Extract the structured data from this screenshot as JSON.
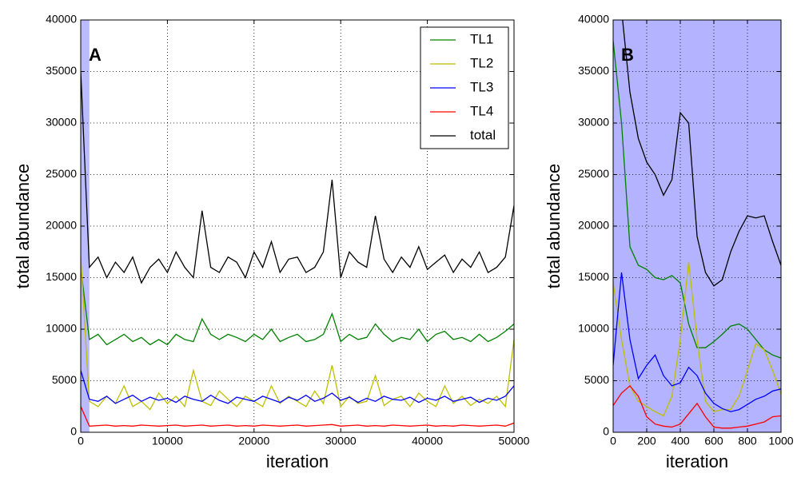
{
  "chart_data": [
    {
      "type": "line",
      "annotation": "A",
      "xlabel": "iteration",
      "ylabel": "total abundance",
      "x": [
        0,
        1000,
        2000,
        3000,
        4000,
        5000,
        6000,
        7000,
        8000,
        9000,
        10000,
        11000,
        12000,
        13000,
        14000,
        15000,
        16000,
        17000,
        18000,
        19000,
        20000,
        21000,
        22000,
        23000,
        24000,
        25000,
        26000,
        27000,
        28000,
        29000,
        30000,
        31000,
        32000,
        33000,
        34000,
        35000,
        36000,
        37000,
        38000,
        39000,
        40000,
        41000,
        42000,
        43000,
        44000,
        45000,
        46000,
        47000,
        48000,
        49000,
        50000
      ],
      "series": [
        {
          "name": "TL1",
          "color": "#008000",
          "values": [
            16000,
            9000,
            9500,
            8500,
            9000,
            9500,
            8800,
            9200,
            8500,
            9000,
            8500,
            9500,
            9000,
            8800,
            11000,
            9500,
            9000,
            9500,
            9200,
            8800,
            9500,
            9000,
            10000,
            8800,
            9200,
            9500,
            8800,
            9000,
            9500,
            11500,
            8800,
            9500,
            9000,
            9200,
            10500,
            9500,
            8800,
            9200,
            9000,
            10000,
            8800,
            9500,
            9800,
            9000,
            9200,
            8800,
            9500,
            8800,
            9200,
            9800,
            10500
          ]
        },
        {
          "name": "TL2",
          "color": "#bfbf00",
          "values": [
            17000,
            3000,
            2500,
            3500,
            2800,
            4500,
            2500,
            3000,
            2200,
            3800,
            2800,
            3500,
            2500,
            6000,
            3000,
            2600,
            4000,
            3200,
            2500,
            3500,
            3000,
            2500,
            4500,
            2800,
            3500,
            3000,
            2500,
            4000,
            2800,
            6500,
            2500,
            3500,
            2800,
            3000,
            5500,
            2600,
            3200,
            3500,
            2500,
            3800,
            3000,
            2500,
            4500,
            2800,
            3500,
            2600,
            3200,
            2800,
            3500,
            2500,
            9000
          ]
        },
        {
          "name": "TL3",
          "color": "#0000ff",
          "values": [
            6000,
            3200,
            3000,
            3500,
            2800,
            3200,
            3600,
            3000,
            3400,
            3100,
            3300,
            2900,
            3500,
            3200,
            3000,
            3600,
            3100,
            2800,
            3400,
            3200,
            3000,
            3500,
            3200,
            2900,
            3400,
            3100,
            3600,
            3000,
            3300,
            3800,
            3100,
            3400,
            2900,
            3300,
            3000,
            3500,
            3200,
            3100,
            3400,
            2900,
            3300,
            3100,
            3500,
            3000,
            3200,
            3400,
            2900,
            3300,
            3100,
            3500,
            4500
          ]
        },
        {
          "name": "TL4",
          "color": "#ff0000",
          "values": [
            2500,
            600,
            650,
            700,
            600,
            650,
            600,
            700,
            650,
            600,
            650,
            700,
            600,
            650,
            700,
            600,
            650,
            700,
            600,
            650,
            600,
            700,
            650,
            600,
            650,
            700,
            600,
            650,
            700,
            750,
            600,
            650,
            700,
            600,
            650,
            600,
            700,
            650,
            600,
            650,
            700,
            600,
            650,
            600,
            700,
            650,
            600,
            650,
            700,
            600,
            900
          ]
        },
        {
          "name": "total",
          "color": "#000000",
          "values": [
            35000,
            16000,
            17000,
            15000,
            16500,
            15500,
            17000,
            14500,
            16000,
            16800,
            15500,
            17500,
            16000,
            15000,
            21500,
            16000,
            15500,
            17000,
            16500,
            15000,
            17500,
            16000,
            18500,
            15500,
            16800,
            17000,
            15500,
            16000,
            17500,
            24500,
            15000,
            17500,
            16500,
            16000,
            21000,
            16800,
            15500,
            17000,
            16000,
            18000,
            15800,
            16500,
            17200,
            15500,
            16800,
            16000,
            17500,
            15500,
            16000,
            17000,
            22000
          ]
        }
      ],
      "xlim": [
        0,
        50000
      ],
      "xticks": [
        0,
        10000,
        20000,
        30000,
        40000,
        50000
      ],
      "ylim": [
        0,
        40000
      ],
      "yticks": [
        0,
        5000,
        10000,
        15000,
        20000,
        25000,
        30000,
        35000,
        40000
      ],
      "grid": true,
      "legend": "upper right",
      "highlight_xlim": [
        0,
        1000
      ],
      "highlight_color": "#b3b3ff"
    },
    {
      "type": "line",
      "annotation": "B",
      "xlabel": "iteration",
      "ylabel": "total abundance",
      "x": [
        0,
        50,
        100,
        150,
        200,
        250,
        300,
        350,
        400,
        450,
        500,
        550,
        600,
        650,
        700,
        750,
        800,
        850,
        900,
        950,
        1000
      ],
      "series": [
        {
          "name": "TL1",
          "color": "#008000",
          "values": [
            38000,
            30000,
            18000,
            16200,
            15800,
            15000,
            14800,
            15200,
            14500,
            10500,
            8200,
            8200,
            8800,
            9500,
            10300,
            10500,
            10000,
            9000,
            8000,
            7500,
            7200
          ]
        },
        {
          "name": "TL2",
          "color": "#bfbf00",
          "values": [
            14500,
            9000,
            4500,
            3000,
            2500,
            2000,
            1600,
            3500,
            9000,
            16500,
            9000,
            3000,
            2000,
            2200,
            2200,
            3500,
            6000,
            8600,
            8000,
            6000,
            3700
          ]
        },
        {
          "name": "TL3",
          "color": "#0000ff",
          "values": [
            6500,
            15500,
            9000,
            5200,
            6500,
            7500,
            5500,
            4500,
            4800,
            6300,
            5500,
            3800,
            2800,
            2300,
            2000,
            2200,
            2700,
            3200,
            3500,
            4000,
            4200
          ]
        },
        {
          "name": "TL4",
          "color": "#ff0000",
          "values": [
            2600,
            3800,
            4500,
            3500,
            1500,
            800,
            600,
            500,
            800,
            1800,
            2800,
            1500,
            500,
            400,
            400,
            500,
            600,
            800,
            1000,
            1500,
            1600
          ]
        },
        {
          "name": "total",
          "color": "#000000",
          "values": [
            48000,
            41000,
            33000,
            28500,
            26200,
            25000,
            23000,
            24500,
            31000,
            30000,
            19000,
            15500,
            14200,
            14800,
            17500,
            19500,
            21000,
            20800,
            21000,
            18500,
            16200
          ]
        }
      ],
      "xlim": [
        0,
        1000
      ],
      "xticks": [
        0,
        200,
        400,
        600,
        800,
        1000
      ],
      "ylim": [
        0,
        40000
      ],
      "yticks": [
        0,
        5000,
        10000,
        15000,
        20000,
        25000,
        30000,
        35000,
        40000
      ],
      "grid": true,
      "background": "#b3b3ff"
    }
  ]
}
